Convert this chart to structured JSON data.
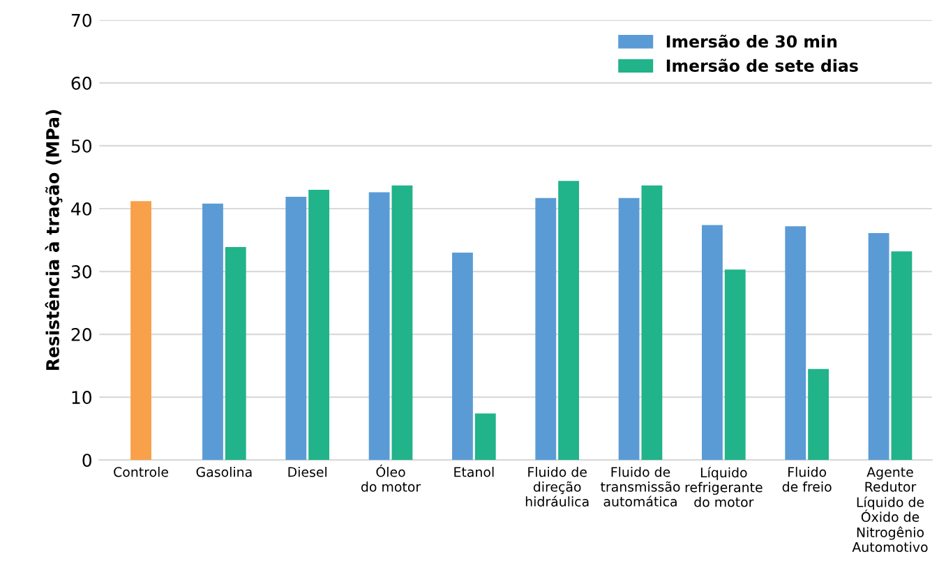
{
  "chart_data": {
    "type": "bar",
    "ylabel": "Resistência à tração (MPa)",
    "categories": [
      "Controle",
      "Gasolina",
      "Diesel",
      "Óleo\ndo motor",
      "Etanol",
      "Fluido de\ndireção\nhidráulica",
      "Fluido de\ntransmissão\nautomática",
      "Líquido\nrefrigerante\ndo motor",
      "Fluido\nde freio",
      "Agente\nRedutor\nLíquido de\nÓxido de\nNitrogênio\nAutomotivo"
    ],
    "series": [
      {
        "color": "#f8a04a",
        "values": [
          41.2,
          null,
          null,
          null,
          null,
          null,
          null,
          null,
          null,
          null
        ]
      },
      {
        "name": "Imersão de 30 min",
        "color": "#5b9bd5",
        "values": [
          null,
          40.8,
          41.9,
          42.6,
          33.0,
          41.7,
          41.7,
          37.4,
          37.2,
          36.1
        ]
      },
      {
        "name": "Imersão de sete dias",
        "color": "#21b38a",
        "values": [
          null,
          33.9,
          43.0,
          43.7,
          7.4,
          44.4,
          43.7,
          30.3,
          14.5,
          33.2
        ]
      }
    ],
    "ylim": [
      0,
      70
    ],
    "yticks": [
      0,
      10,
      20,
      30,
      40,
      50,
      60,
      70
    ],
    "grid": "y",
    "legend": "top right"
  }
}
